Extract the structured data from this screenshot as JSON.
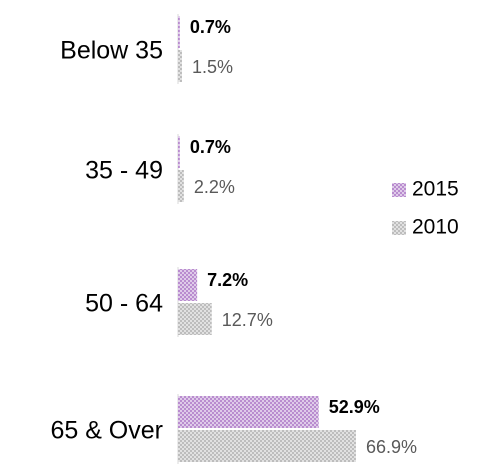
{
  "chart_data": {
    "type": "bar",
    "orientation": "horizontal",
    "categories": [
      "Below 35",
      "35 - 49",
      "50 - 64",
      "65 & Over"
    ],
    "series": [
      {
        "name": "2015",
        "color": "#b98ccf",
        "values": [
          0.7,
          0.7,
          7.2,
          52.9
        ],
        "value_labels": [
          "0.7%",
          "0.7%",
          "7.2%",
          "52.9%"
        ]
      },
      {
        "name": "2010",
        "color": "#bdbdbd",
        "values": [
          1.5,
          2.2,
          12.7,
          66.9
        ],
        "value_labels": [
          "1.5%",
          "2.2%",
          "12.7%",
          "66.9%"
        ]
      }
    ],
    "legend": "right"
  }
}
